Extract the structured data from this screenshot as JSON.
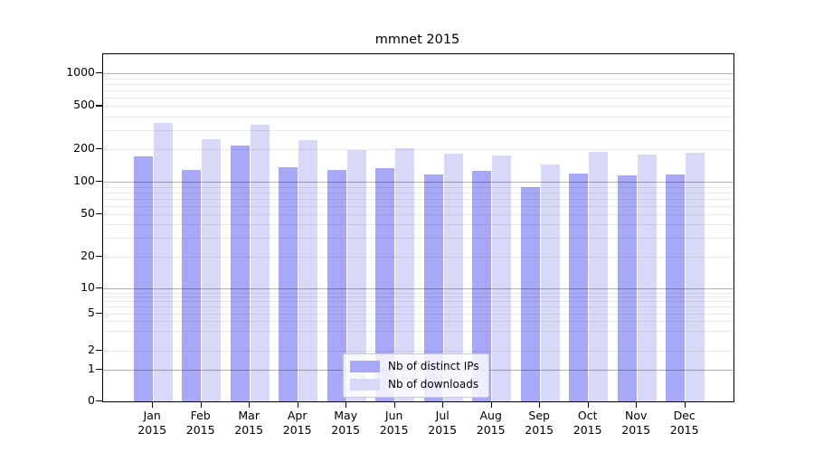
{
  "chart_data": {
    "type": "bar",
    "title": "mmnet 2015",
    "categories": [
      "Jan",
      "Feb",
      "Mar",
      "Apr",
      "May",
      "Jun",
      "Jul",
      "Aug",
      "Sep",
      "Oct",
      "Nov",
      "Dec"
    ],
    "year_label": "2015",
    "series": [
      {
        "name": "Nb of distinct IPs",
        "color": "#a8a8f8",
        "values": [
          173,
          130,
          218,
          137,
          130,
          133,
          117,
          126,
          90,
          119,
          115,
          117
        ]
      },
      {
        "name": "Nb of downloads",
        "color": "#d8d8f8",
        "values": [
          350,
          250,
          335,
          242,
          197,
          203,
          182,
          177,
          145,
          190,
          180,
          186
        ]
      }
    ],
    "y_ticks": [
      0,
      1,
      2,
      5,
      10,
      20,
      50,
      100,
      200,
      500,
      1000
    ],
    "ylim": [
      0,
      1500
    ],
    "yscale": "symlog",
    "grid": "on (minor + major horizontal)",
    "legend_position": "lower center"
  },
  "colors": {
    "major_grid": "rgba(0,0,0,0.30)",
    "minor_grid": "rgba(0,0,0,0.08)",
    "spine": "#000000",
    "text": "#000000",
    "background": "#ffffff"
  }
}
